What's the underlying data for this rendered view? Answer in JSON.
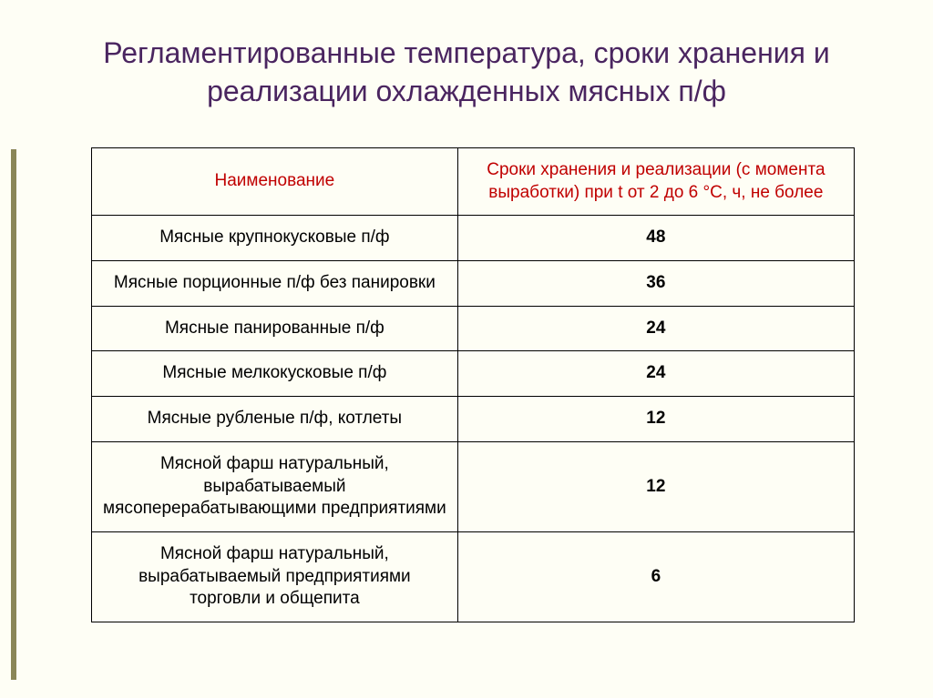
{
  "slide": {
    "title": "Регламентированные температура, сроки хранения и реализации охлажденных мясных п/ф",
    "background_color": "#fefef5",
    "accent_bar_color": "#8a8658",
    "title_color": "#4a2560",
    "title_fontsize": 32
  },
  "table": {
    "header_color": "#c00000",
    "border_color": "#000000",
    "cell_fontsize": 19,
    "columns": [
      {
        "label": "Наименование"
      },
      {
        "label": "Сроки хранения и реализации (с момента выработки) при t от 2 до 6 °С, ч, не более"
      }
    ],
    "rows": [
      {
        "name": "Мясные крупнокусковые п/ф",
        "value": "48"
      },
      {
        "name": "Мясные порционные п/ф без панировки",
        "value": "36"
      },
      {
        "name": "Мясные панированные п/ф",
        "value": "24"
      },
      {
        "name": "Мясные мелкокусковые п/ф",
        "value": "24"
      },
      {
        "name": "Мясные рубленые п/ф, котлеты",
        "value": "12"
      },
      {
        "name": "Мясной фарш натуральный, вырабатываемый мясоперерабатывающими предприятиями",
        "value": "12"
      },
      {
        "name": "Мясной фарш натуральный, вырабатываемый предприятиями торговли и общепита",
        "value": "6"
      }
    ]
  }
}
